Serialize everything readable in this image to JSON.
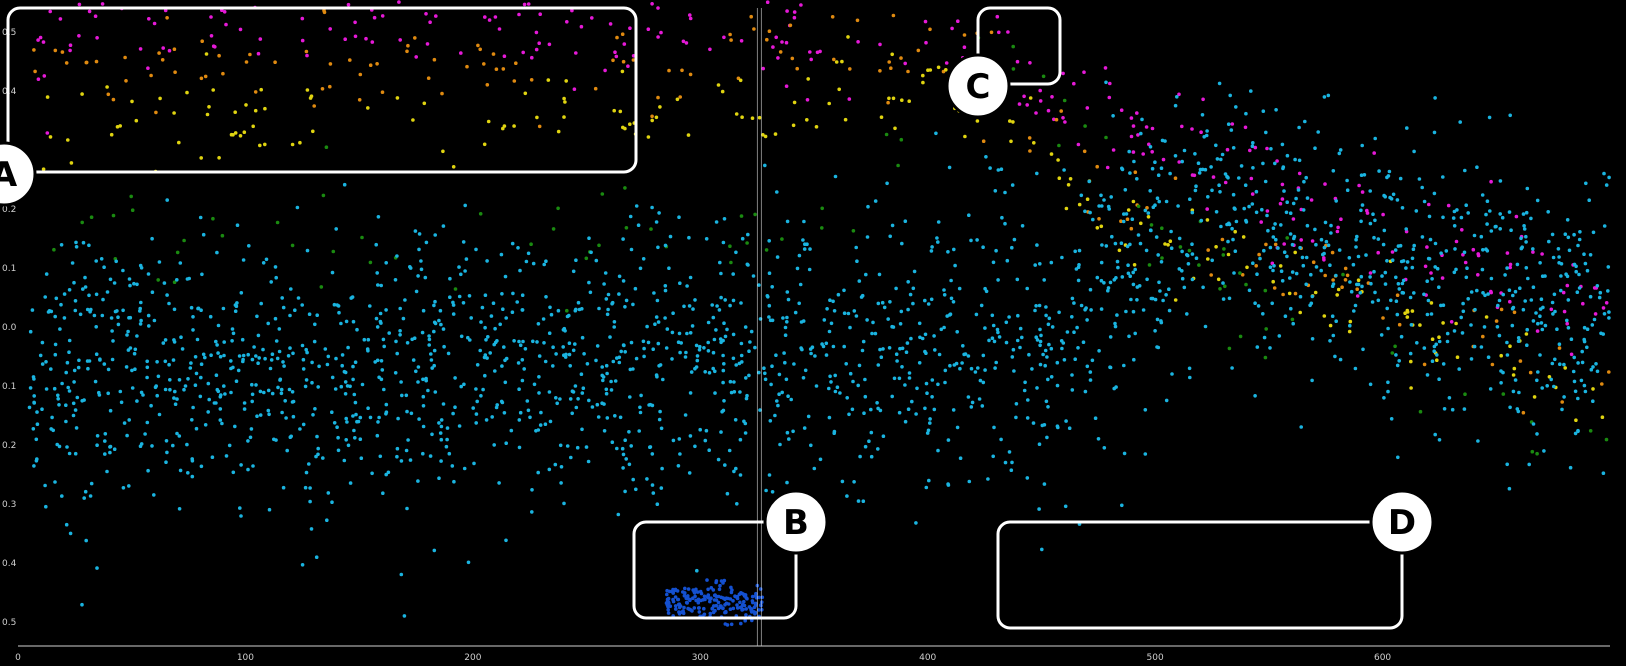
{
  "chart_data": {
    "type": "scatter",
    "title": "",
    "xlabel": "",
    "ylabel": "",
    "xlim": [
      0,
      700
    ],
    "ylim": [
      -0.55,
      0.55
    ],
    "x_ticks": [
      0,
      100,
      200,
      300,
      400,
      500,
      600
    ],
    "y_ticks": [
      {
        "value": 0.5,
        "label": "0.5"
      },
      {
        "value": 0.4,
        "label": "0.4"
      },
      {
        "value": 0.3,
        "label": "0.3"
      },
      {
        "value": 0.2,
        "label": "0.2"
      },
      {
        "value": 0.1,
        "label": "0.1"
      },
      {
        "value": 0.0,
        "label": "0.0"
      },
      {
        "value": -0.1,
        "label": "0.1"
      },
      {
        "value": -0.2,
        "label": "0.2"
      },
      {
        "value": -0.3,
        "label": "0.3"
      },
      {
        "value": -0.4,
        "label": "0.4"
      },
      {
        "value": -0.5,
        "label": "0.5"
      }
    ],
    "grid": false,
    "vertical_marker_x": 326,
    "colors": {
      "magenta": "#e619d8",
      "orange": "#e08a10",
      "yellow": "#e0d410",
      "green": "#1a8a10",
      "cyan": "#1ab4e0",
      "blue": "#1450d0",
      "axis": "#cfcfcf",
      "annotation": "#ffffff"
    },
    "series": [
      {
        "color_key": "magenta",
        "trend": [
          [
            5,
            0.5
          ],
          [
            60,
            0.52
          ],
          [
            130,
            0.53
          ],
          [
            200,
            0.53
          ],
          [
            270,
            0.52
          ],
          [
            280,
            0.5
          ],
          [
            330,
            0.5
          ],
          [
            380,
            0.52
          ],
          [
            420,
            0.48
          ],
          [
            460,
            0.4
          ],
          [
            520,
            0.28
          ],
          [
            600,
            0.15
          ],
          [
            700,
            0.05
          ]
        ],
        "spread": 0.05,
        "n": 320
      },
      {
        "color_key": "orange",
        "trend": [
          [
            5,
            0.43
          ],
          [
            100,
            0.44
          ],
          [
            200,
            0.44
          ],
          [
            280,
            0.43
          ],
          [
            330,
            0.46
          ],
          [
            420,
            0.45
          ],
          [
            480,
            0.2
          ],
          [
            600,
            0.05
          ],
          [
            700,
            -0.1
          ]
        ],
        "spread": 0.04,
        "n": 160
      },
      {
        "color_key": "yellow",
        "trend": [
          [
            10,
            0.34
          ],
          [
            100,
            0.34
          ],
          [
            200,
            0.33
          ],
          [
            280,
            0.34
          ],
          [
            340,
            0.37
          ],
          [
            420,
            0.44
          ],
          [
            480,
            0.18
          ],
          [
            600,
            0.02
          ],
          [
            700,
            -0.12
          ]
        ],
        "spread": 0.04,
        "n": 200
      },
      {
        "color_key": "green",
        "trend": [
          [
            10,
            0.18
          ],
          [
            200,
            0.13
          ],
          [
            300,
            0.12
          ],
          [
            410,
            0.32
          ],
          [
            430,
            0.55
          ],
          [
            500,
            0.15
          ],
          [
            700,
            -0.25
          ]
        ],
        "spread": 0.05,
        "n": 90
      },
      {
        "color_key": "cyan",
        "trend": [
          [
            5,
            -0.08
          ],
          [
            60,
            -0.06
          ],
          [
            120,
            -0.09
          ],
          [
            200,
            -0.08
          ],
          [
            280,
            -0.06
          ],
          [
            330,
            -0.04
          ],
          [
            400,
            -0.05
          ],
          [
            460,
            -0.02
          ],
          [
            470,
            0.05
          ],
          [
            520,
            0.2
          ],
          [
            600,
            0.1
          ],
          [
            700,
            0.0
          ]
        ],
        "spread": 0.12,
        "n": 2200
      },
      {
        "color_key": "blue",
        "trend": [
          [
            285,
            -0.47
          ],
          [
            300,
            -0.46
          ],
          [
            315,
            -0.47
          ],
          [
            328,
            -0.47
          ]
        ],
        "spread": 0.015,
        "n": 200
      }
    ],
    "annotations": [
      {
        "label": "A"
      },
      {
        "label": "B"
      },
      {
        "label": "C"
      },
      {
        "label": "D"
      }
    ]
  }
}
